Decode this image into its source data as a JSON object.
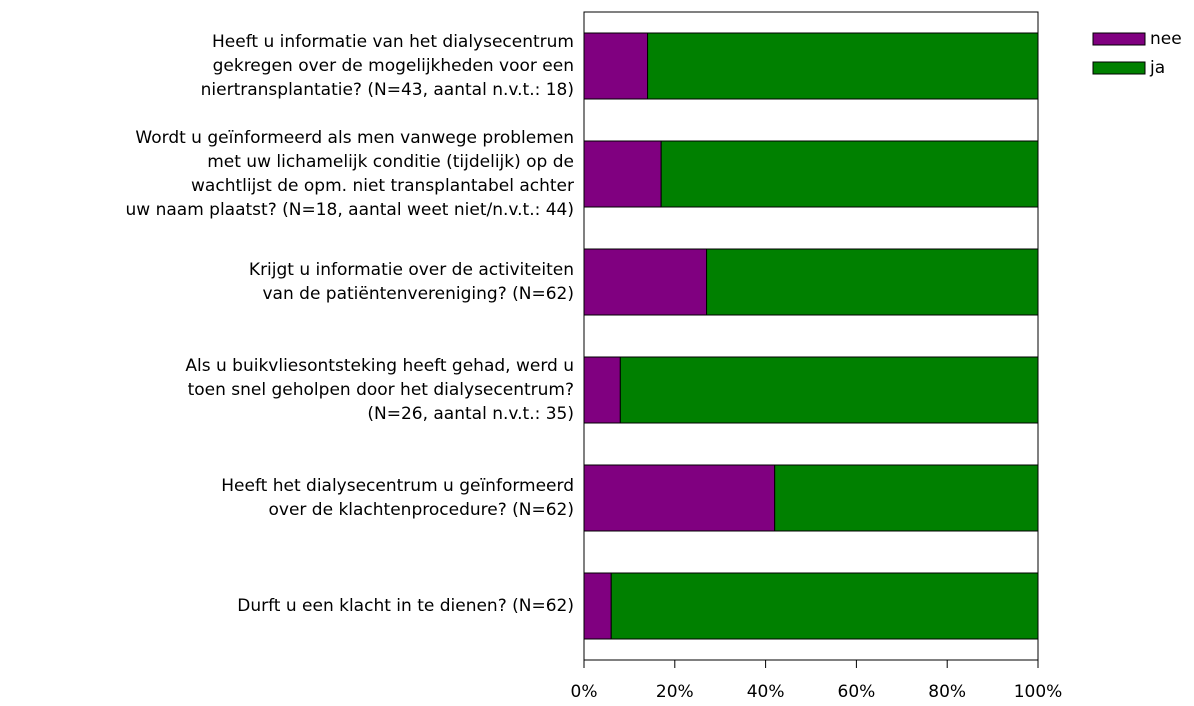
{
  "chart_data": {
    "type": "stacked_barh",
    "categories": [
      [
        "Heeft u informatie van het dialysecentrum",
        "gekregen over de mogelijkheden voor een",
        "niertransplantatie? (N=43, aantal n.v.t.: 18)"
      ],
      [
        "Wordt u geïnformeerd als men vanwege problemen",
        "met uw lichamelijk conditie (tijdelijk) op de",
        "wachtlijst de opm. niet transplantabel achter",
        "uw naam plaatst? (N=18, aantal weet niet/n.v.t.: 44)"
      ],
      [
        "Krijgt u informatie over de activiteiten",
        "van de patiëntenvereniging? (N=62)"
      ],
      [
        "Als u buikvliesontsteking heeft gehad, werd u",
        "toen snel geholpen door het dialysecentrum?",
        "(N=26, aantal n.v.t.: 35)"
      ],
      [
        "Heeft het dialysecentrum u geïnformeerd",
        "over de klachtenprocedure? (N=62)"
      ],
      [
        "Durft u een klacht in te dienen? (N=62)"
      ]
    ],
    "series": [
      {
        "name": "nee",
        "color": "#800080",
        "values": [
          14,
          17,
          27,
          8,
          42,
          6
        ]
      },
      {
        "name": "ja",
        "color": "#008000",
        "values": [
          86,
          83,
          73,
          92,
          58,
          94
        ]
      }
    ],
    "xlim": [
      0,
      100
    ],
    "xticks": [
      {
        "value": 0,
        "label": "0%"
      },
      {
        "value": 20,
        "label": "20%"
      },
      {
        "value": 40,
        "label": "40%"
      },
      {
        "value": 60,
        "label": "60%"
      },
      {
        "value": 80,
        "label": "80%"
      },
      {
        "value": 100,
        "label": "100%"
      }
    ],
    "legend": "top-right"
  }
}
